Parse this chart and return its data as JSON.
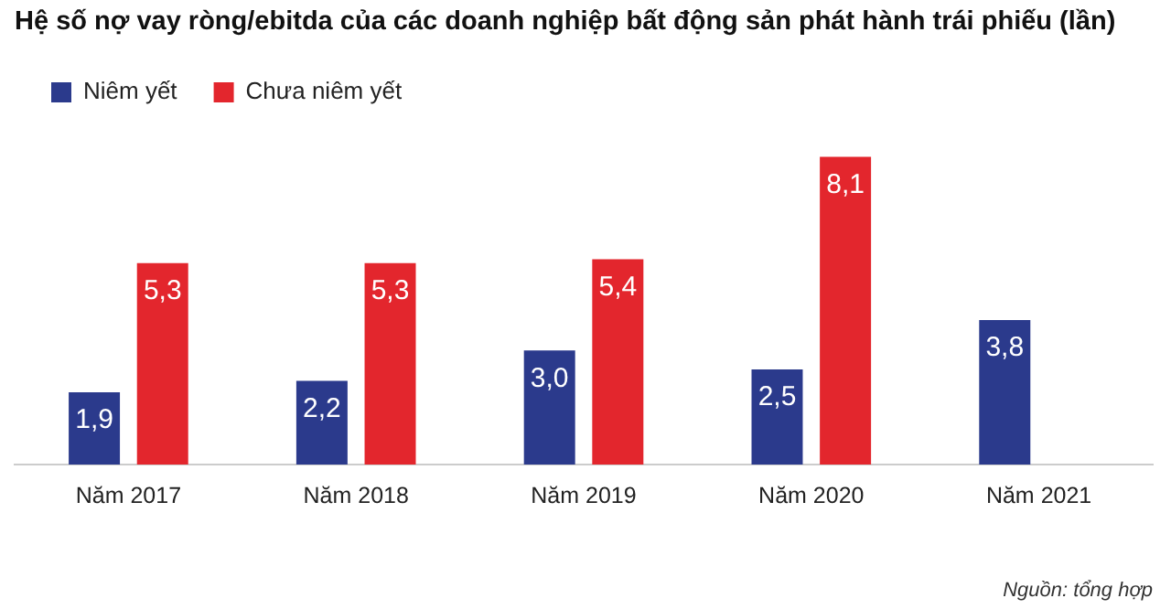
{
  "chart_data": {
    "type": "bar",
    "title": "Hệ số nợ vay ròng/ebitda của các doanh nghiệp bất động sản phát hành trái phiếu (lần)",
    "categories": [
      "Năm 2017",
      "Năm 2018",
      "Năm 2019",
      "Năm 2020",
      "Năm 2021"
    ],
    "series": [
      {
        "name": "Niêm yết",
        "color": "#2b3a8c",
        "values": [
          1.9,
          2.2,
          3.0,
          2.5,
          3.8
        ],
        "value_labels": [
          "1,9",
          "2,2",
          "3,0",
          "2,5",
          "3,8"
        ]
      },
      {
        "name": "Chưa niêm yết",
        "color": "#e3262d",
        "values": [
          5.3,
          5.3,
          5.4,
          8.1,
          null
        ],
        "value_labels": [
          "5,3",
          "5,3",
          "5,4",
          "8,1",
          null
        ]
      }
    ],
    "legend": "top left",
    "grid": false,
    "annotations": [
      "Nguồn: tổng hợp"
    ]
  }
}
